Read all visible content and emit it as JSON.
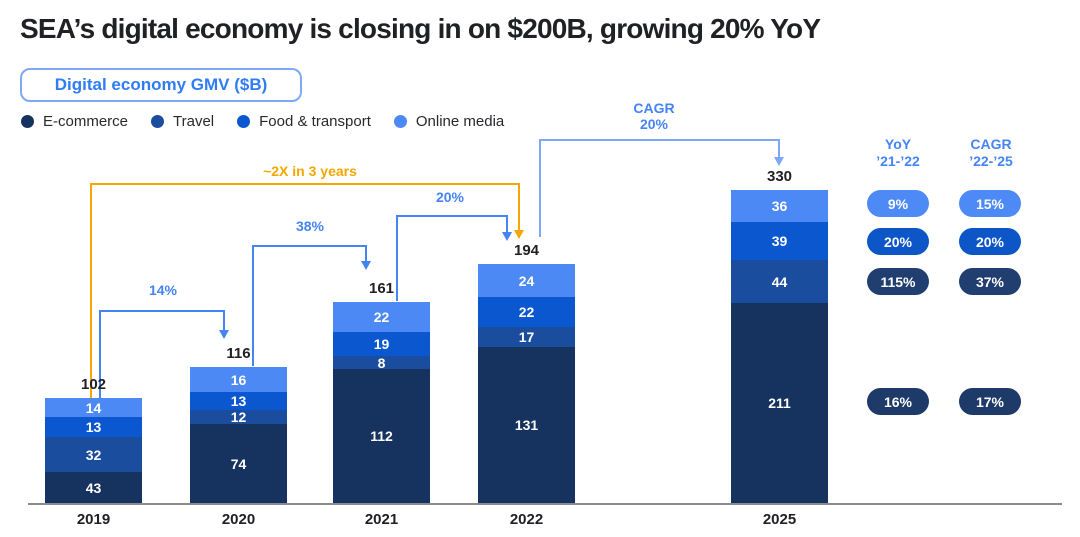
{
  "title": "SEA’s digital economy is closing in on $200B, growing 20% YoY",
  "badge": "Digital economy GMV ($B)",
  "colors": {
    "accent": "#4484F4",
    "arrow_light": "#7DA7F7",
    "orange": "#F5A700",
    "text": "#202124",
    "axis": "#888B90",
    "badge_border": "#7FA8F7",
    "badge_text": "#2E7CF6"
  },
  "chart_data": {
    "type": "bar",
    "stacked": true,
    "title": "Digital economy GMV ($B)",
    "xlabel": "",
    "ylabel": "GMV ($B)",
    "grid": false,
    "categories": [
      "2019",
      "2020",
      "2021",
      "2022",
      "2025"
    ],
    "totals": [
      102,
      116,
      161,
      194,
      330
    ],
    "series": [
      {
        "name": "E-commerce",
        "color": "#16325E",
        "values": [
          43,
          74,
          112,
          131,
          211
        ]
      },
      {
        "name": "Travel",
        "color": "#1B4D9E",
        "values": [
          32,
          12,
          8,
          17,
          44
        ]
      },
      {
        "name": "Food & transport",
        "color": "#0B57D0",
        "values": [
          13,
          13,
          19,
          22,
          39
        ]
      },
      {
        "name": "Online media",
        "color": "#4C89F4",
        "values": [
          14,
          16,
          22,
          24,
          36
        ]
      }
    ],
    "annotations": {
      "growth_2019_2020": "14%",
      "growth_2020_2021": "38%",
      "growth_2021_2022": "20%",
      "cagr_label": "CAGR",
      "cagr_value": "20%",
      "double_label": "~2X in 3 years"
    }
  },
  "stats_panel": {
    "col1": {
      "title": "YoY",
      "subtitle": "’21-’22"
    },
    "col2": {
      "title": "CAGR",
      "subtitle": "’22-’25"
    },
    "rows": [
      {
        "category": "Online media",
        "yoy": "9%",
        "cagr": "15%",
        "color": "#4D8AF5"
      },
      {
        "category": "Food & transport",
        "yoy": "20%",
        "cagr": "20%",
        "color": "#0C56C8"
      },
      {
        "category": "Travel",
        "yoy": "115%",
        "cagr": "37%",
        "color": "#203E70"
      },
      {
        "category": "E-commerce",
        "yoy": "16%",
        "cagr": "17%",
        "color": "#1D3A68"
      }
    ]
  }
}
